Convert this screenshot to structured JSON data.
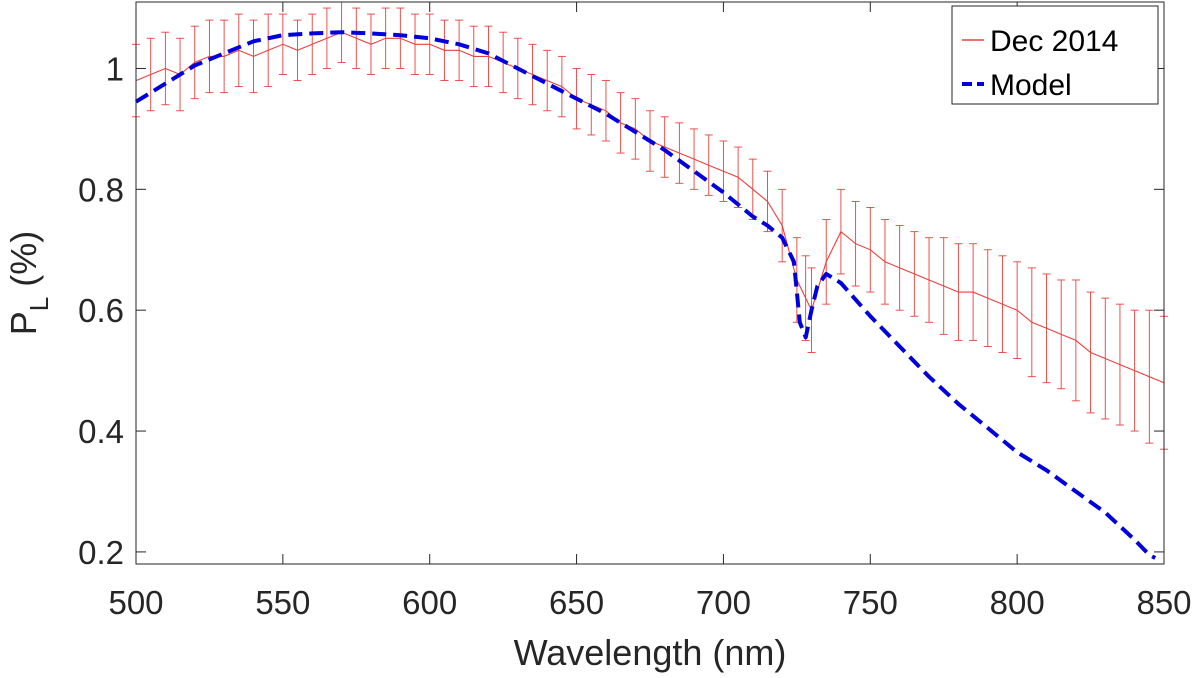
{
  "chart_data": {
    "type": "line",
    "title": "",
    "xlabel": "Wavelength (nm)",
    "ylabel_main": "P",
    "ylabel_sub": "L",
    "ylabel_rest": " (%)",
    "xlim": [
      500,
      850
    ],
    "ylim": [
      0.18,
      1.11
    ],
    "xticks": [
      500,
      550,
      600,
      650,
      700,
      750,
      800,
      850
    ],
    "yticks": [
      0.2,
      0.4,
      0.6,
      0.8,
      1
    ],
    "xtick_labels": [
      "500",
      "550",
      "600",
      "650",
      "700",
      "750",
      "800",
      "850"
    ],
    "ytick_labels": [
      "0.2",
      "0.4",
      "0.6",
      "0.8",
      "1"
    ],
    "legend_position": "top-right",
    "colors": {
      "data": "#e8403c",
      "model": "#0000dd",
      "axis": "#262626"
    },
    "series": [
      {
        "name": "Dec 2014",
        "style": "solid-with-errorbars",
        "x": [
          500,
          505,
          510,
          515,
          520,
          525,
          530,
          535,
          540,
          545,
          550,
          555,
          560,
          565,
          570,
          575,
          580,
          585,
          590,
          595,
          600,
          605,
          610,
          615,
          620,
          625,
          630,
          635,
          640,
          645,
          650,
          655,
          660,
          665,
          670,
          675,
          680,
          685,
          690,
          695,
          700,
          705,
          710,
          715,
          720,
          725,
          728,
          730,
          735,
          740,
          745,
          750,
          755,
          760,
          765,
          770,
          775,
          780,
          785,
          790,
          795,
          800,
          805,
          810,
          815,
          820,
          825,
          830,
          835,
          840,
          845,
          850
        ],
        "values": [
          0.98,
          0.99,
          1.0,
          0.99,
          1.01,
          1.02,
          1.02,
          1.03,
          1.02,
          1.03,
          1.04,
          1.03,
          1.04,
          1.05,
          1.06,
          1.05,
          1.04,
          1.05,
          1.05,
          1.04,
          1.04,
          1.03,
          1.03,
          1.02,
          1.02,
          1.01,
          1.0,
          0.99,
          0.98,
          0.97,
          0.95,
          0.94,
          0.93,
          0.91,
          0.9,
          0.88,
          0.87,
          0.86,
          0.85,
          0.84,
          0.83,
          0.82,
          0.8,
          0.78,
          0.74,
          0.65,
          0.62,
          0.6,
          0.68,
          0.73,
          0.71,
          0.7,
          0.68,
          0.67,
          0.66,
          0.65,
          0.64,
          0.63,
          0.63,
          0.62,
          0.61,
          0.6,
          0.58,
          0.57,
          0.56,
          0.55,
          0.53,
          0.52,
          0.51,
          0.5,
          0.49,
          0.48
        ],
        "errors": [
          0.06,
          0.06,
          0.06,
          0.06,
          0.06,
          0.06,
          0.06,
          0.06,
          0.06,
          0.06,
          0.05,
          0.05,
          0.05,
          0.05,
          0.05,
          0.05,
          0.05,
          0.05,
          0.05,
          0.05,
          0.05,
          0.05,
          0.05,
          0.05,
          0.05,
          0.05,
          0.05,
          0.05,
          0.05,
          0.05,
          0.05,
          0.05,
          0.05,
          0.05,
          0.05,
          0.05,
          0.05,
          0.05,
          0.05,
          0.05,
          0.05,
          0.05,
          0.05,
          0.05,
          0.06,
          0.07,
          0.07,
          0.07,
          0.07,
          0.07,
          0.07,
          0.07,
          0.07,
          0.07,
          0.07,
          0.07,
          0.08,
          0.08,
          0.08,
          0.08,
          0.08,
          0.08,
          0.09,
          0.09,
          0.09,
          0.1,
          0.1,
          0.1,
          0.1,
          0.1,
          0.11,
          0.11
        ]
      },
      {
        "name": "Model",
        "style": "dashed",
        "x": [
          500,
          510,
          520,
          530,
          540,
          550,
          560,
          570,
          580,
          590,
          600,
          610,
          620,
          630,
          640,
          650,
          660,
          670,
          680,
          690,
          700,
          710,
          715,
          720,
          724,
          726,
          728,
          730,
          732,
          735,
          740,
          750,
          760,
          770,
          780,
          790,
          800,
          810,
          820,
          830,
          840,
          845,
          847
        ],
        "values": [
          0.945,
          0.975,
          1.005,
          1.025,
          1.045,
          1.055,
          1.058,
          1.06,
          1.058,
          1.055,
          1.05,
          1.04,
          1.025,
          1.0,
          0.975,
          0.95,
          0.925,
          0.895,
          0.865,
          0.83,
          0.795,
          0.755,
          0.74,
          0.72,
          0.68,
          0.58,
          0.555,
          0.6,
          0.64,
          0.66,
          0.645,
          0.59,
          0.54,
          0.49,
          0.445,
          0.405,
          0.365,
          0.335,
          0.3,
          0.265,
          0.22,
          0.195,
          0.19
        ]
      }
    ]
  }
}
